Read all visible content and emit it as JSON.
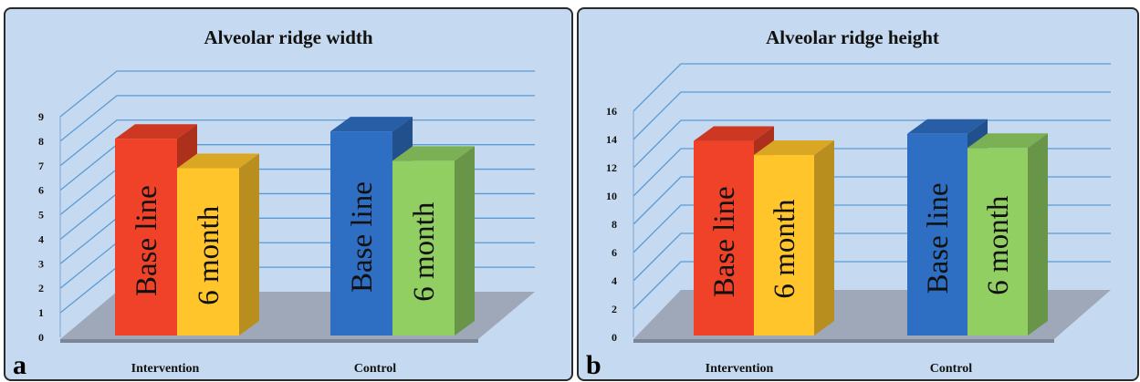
{
  "chart_data": [
    {
      "type": "bar",
      "panel_label": "a",
      "title": "Alveolar ridge width",
      "categories": [
        "Intervention",
        "Control"
      ],
      "y_ticks": [
        "0",
        "1",
        "2",
        "3",
        "4",
        "5",
        "6",
        "7",
        "8",
        "9"
      ],
      "ylim": [
        0,
        9
      ],
      "grid": true,
      "bars": [
        {
          "category": "Intervention",
          "label": "Base line",
          "value": 8.1,
          "color": "#f04228"
        },
        {
          "category": "Intervention",
          "label": "6 month",
          "value": 6.9,
          "color": "#ffc52a"
        },
        {
          "category": "Control",
          "label": "Base line",
          "value": 8.4,
          "color": "#2e6fc3"
        },
        {
          "category": "Control",
          "label": "6 month",
          "value": 7.2,
          "color": "#91cf63"
        }
      ]
    },
    {
      "type": "bar",
      "panel_label": "b",
      "title": "Alveolar ridge height",
      "categories": [
        "Intervention",
        "Control"
      ],
      "y_ticks": [
        "0",
        "2",
        "4",
        "6",
        "8",
        "10",
        "12",
        "14",
        "16"
      ],
      "ylim": [
        0,
        16
      ],
      "grid": true,
      "bars": [
        {
          "category": "Intervention",
          "label": "Base line",
          "value": 13.9,
          "color": "#f04228"
        },
        {
          "category": "Intervention",
          "label": "6 month",
          "value": 12.9,
          "color": "#ffc52a"
        },
        {
          "category": "Control",
          "label": "Base line",
          "value": 14.4,
          "color": "#2e6fc3"
        },
        {
          "category": "Control",
          "label": "6 month",
          "value": 13.4,
          "color": "#91cf63"
        }
      ]
    }
  ]
}
